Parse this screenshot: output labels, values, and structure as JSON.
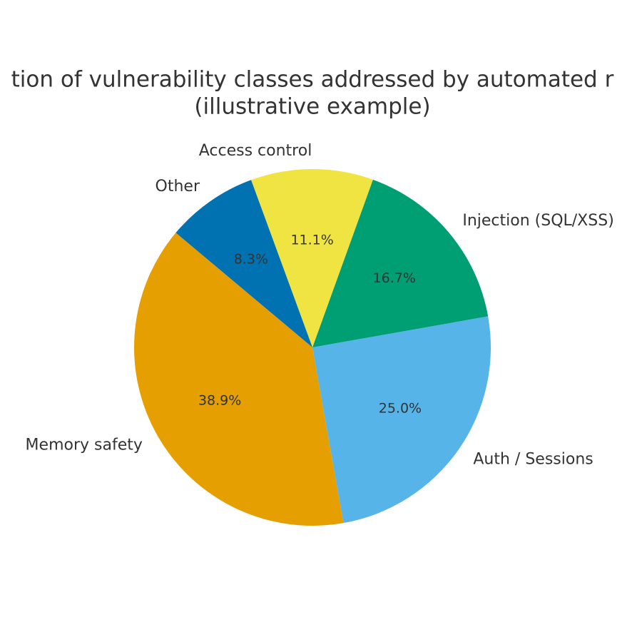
{
  "chart_data": {
    "type": "pie",
    "title": [
      "tion of vulnerability classes addressed by automated r",
      "(illustrative example)"
    ],
    "categories": [
      "Memory safety",
      "Auth / Sessions",
      "Injection (SQL/XSS)",
      "Access control",
      "Other"
    ],
    "values": [
      38.9,
      25.0,
      16.7,
      11.1,
      8.3
    ],
    "value_labels": [
      "38.9%",
      "25.0%",
      "16.7%",
      "11.1%",
      "8.3%"
    ],
    "colors": [
      "#E69F00",
      "#56B4E9",
      "#009E73",
      "#F0E442",
      "#0072B2"
    ],
    "start_angle": 140,
    "counterclock": true
  }
}
